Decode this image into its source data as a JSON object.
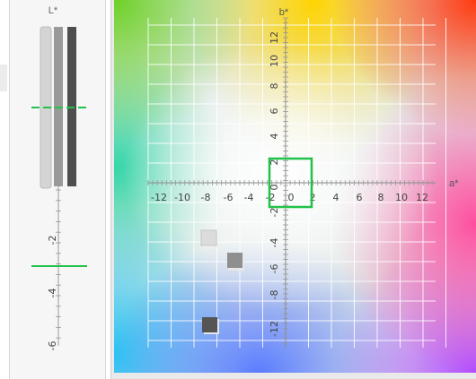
{
  "lightness_panel": {
    "axis_label": "L*",
    "tick_labels": [
      "-2",
      "-4",
      "-6"
    ]
  },
  "ab_plot": {
    "a_axis_label": "a*",
    "b_axis_label": "b*",
    "a_tick_labels": [
      "-12",
      "-10",
      "-8",
      "-6",
      "-4",
      "-2",
      "0",
      "2",
      "4",
      "6",
      "8",
      "10",
      "12"
    ],
    "b_tick_labels": [
      "12",
      "10",
      "8",
      "6",
      "4",
      "2",
      "0",
      "-2",
      "-4",
      "-6",
      "-8",
      "-12"
    ]
  },
  "colors": {
    "target_box": "#22c24a",
    "swatch_light": "#dcdcdc",
    "swatch_mid": "#8f8f8f",
    "swatch_dark": "#555555"
  }
}
